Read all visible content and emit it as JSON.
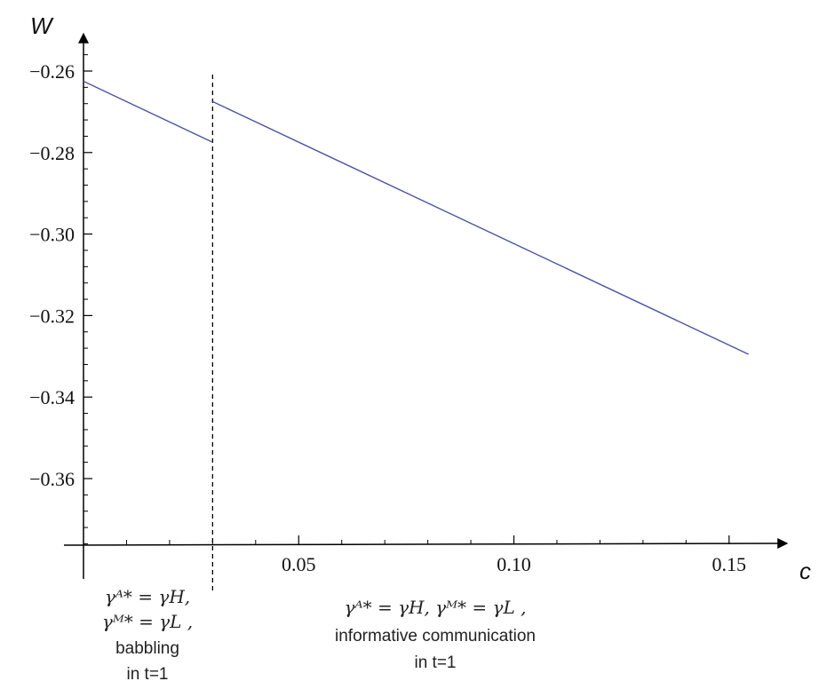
{
  "chart_data": {
    "type": "line",
    "xlabel": "c",
    "ylabel": "W",
    "xlim": [
      0,
      0.155
    ],
    "ylim": [
      -0.38,
      -0.255
    ],
    "x_ticks": [
      0.05,
      0.1,
      0.15
    ],
    "x_tick_labels": [
      "0.05",
      "0.10",
      "0.15"
    ],
    "y_ticks": [
      -0.26,
      -0.28,
      -0.3,
      -0.32,
      -0.34,
      -0.36
    ],
    "y_tick_labels": [
      "−0.26",
      "−0.28",
      "−0.30",
      "−0.32",
      "−0.34",
      "−0.36"
    ],
    "grid": false,
    "series": [
      {
        "color": "#4a55a2",
        "segments": [
          {
            "x": [
              0.0,
              0.03
            ],
            "y": [
              -0.2625,
              -0.2775
            ]
          },
          {
            "x": [
              0.03,
              0.1545
            ],
            "y": [
              -0.2675,
              -0.3295
            ]
          }
        ]
      }
    ],
    "threshold": {
      "x": 0.03,
      "style": "dashed"
    },
    "regions": [
      {
        "lines": [
          "γᴬ* = γH,",
          "γᴹ* = γL ,",
          "babbling",
          "in t=1"
        ]
      },
      {
        "lines": [
          "γᴬ* = γH, γᴹ* = γL ,",
          "informative communication",
          "in t=1"
        ]
      }
    ]
  }
}
